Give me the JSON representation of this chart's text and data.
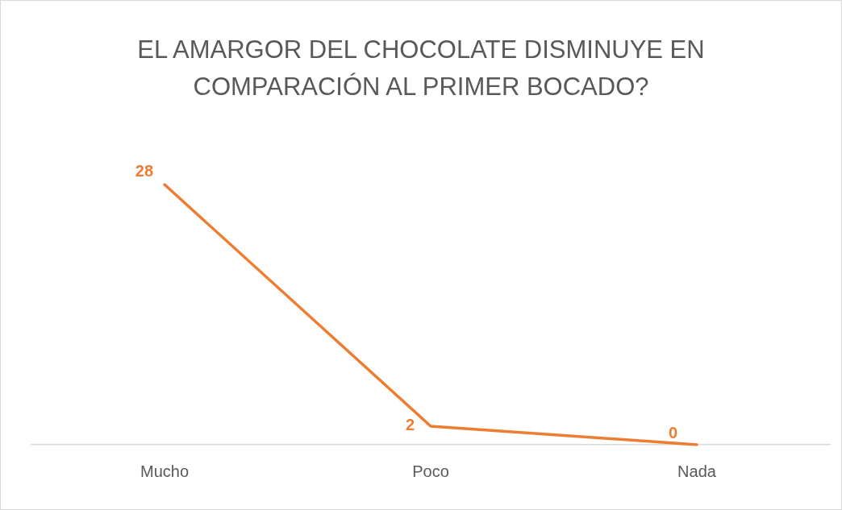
{
  "chart_data": {
    "type": "line",
    "title": "EL AMARGOR DEL CHOCOLATE DISMINUYE EN COMPARACIÓN AL PRIMER BOCADO?",
    "categories": [
      "Mucho",
      "Poco",
      "Nada"
    ],
    "series": [
      {
        "color": "#ed7d31",
        "values": [
          28,
          2,
          0
        ]
      }
    ],
    "data_labels": true,
    "grid": false,
    "legend": false,
    "marker": "none"
  }
}
